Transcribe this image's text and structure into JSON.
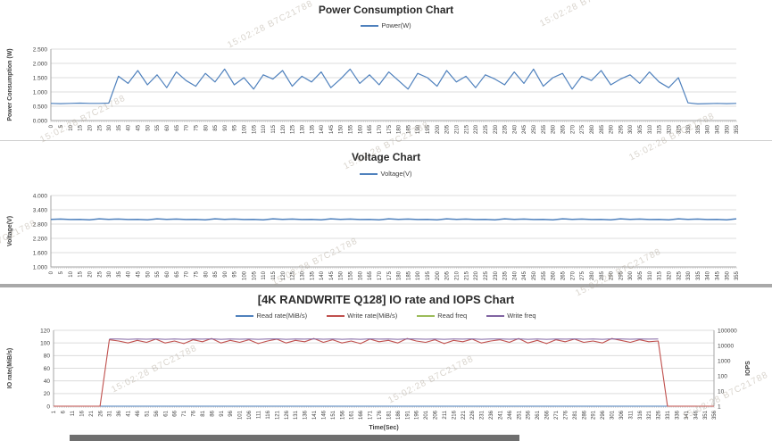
{
  "watermark": {
    "text": "15:02:28   B7C21788"
  },
  "chart_data": [
    {
      "id": "power",
      "type": "line",
      "title": "Power Consumption Chart",
      "legend": [
        {
          "label": "Power(W)",
          "color": "#4F81BD"
        }
      ],
      "y_axis": {
        "label": "Power Consumption (W)",
        "min": 0,
        "max": 2.5,
        "step": 0.5,
        "decimals": 3
      },
      "x_axis": {
        "min": 0,
        "max": 355,
        "step": 5
      },
      "series": [
        {
          "name": "Power(W)",
          "color": "#4F81BD",
          "axis": "left",
          "width": 1.2,
          "values": [
            0.6,
            0.59,
            0.6,
            0.61,
            0.6,
            0.6,
            0.61,
            1.55,
            1.3,
            1.75,
            1.25,
            1.6,
            1.15,
            1.7,
            1.4,
            1.2,
            1.65,
            1.35,
            1.8,
            1.25,
            1.5,
            1.1,
            1.6,
            1.45,
            1.75,
            1.2,
            1.55,
            1.35,
            1.7,
            1.15,
            1.45,
            1.8,
            1.3,
            1.6,
            1.25,
            1.7,
            1.4,
            1.1,
            1.65,
            1.5,
            1.2,
            1.75,
            1.35,
            1.55,
            1.15,
            1.6,
            1.45,
            1.25,
            1.7,
            1.3,
            1.8,
            1.2,
            1.5,
            1.65,
            1.1,
            1.55,
            1.4,
            1.75,
            1.25,
            1.45,
            1.6,
            1.3,
            1.7,
            1.35,
            1.15,
            1.5,
            0.62,
            0.58,
            0.59,
            0.6,
            0.59,
            0.6
          ]
        }
      ]
    },
    {
      "id": "voltage",
      "type": "line",
      "title": "Voltage Chart",
      "legend": [
        {
          "label": "Voltage(V)",
          "color": "#4F81BD"
        }
      ],
      "y_axis": {
        "label": "Voltage(V)",
        "min": 1.0,
        "max": 4.0,
        "step": 0.6,
        "decimals": 3
      },
      "x_axis": {
        "min": 0,
        "max": 355,
        "step": 5
      },
      "series": [
        {
          "name": "Voltage(V)",
          "color": "#4F81BD",
          "axis": "left",
          "width": 1.5,
          "values": [
            3.0,
            3.01,
            2.99,
            3.0,
            2.98,
            3.02,
            3.0,
            3.01,
            2.99,
            3.0,
            2.98,
            3.02,
            3.0,
            3.01,
            2.99,
            3.0,
            2.98,
            3.02,
            3.0,
            3.01,
            2.99,
            3.0,
            2.98,
            3.02,
            3.0,
            3.01,
            2.99,
            3.0,
            2.98,
            3.02,
            3.0,
            3.01,
            2.99,
            3.0,
            2.98,
            3.02,
            3.0,
            3.01,
            2.99,
            3.0,
            2.98,
            3.02,
            3.0,
            3.01,
            2.99,
            3.0,
            2.98,
            3.02,
            3.0,
            3.01,
            2.99,
            3.0,
            2.98,
            3.02,
            3.0,
            3.01,
            2.99,
            3.0,
            2.98,
            3.02,
            3.0,
            3.01,
            2.99,
            3.0,
            2.98,
            3.02,
            3.0,
            3.01,
            2.99,
            3.0,
            2.98,
            3.02
          ]
        }
      ]
    },
    {
      "id": "io",
      "type": "line",
      "title": "[4K RANDWRITE Q128] IO rate and IOPS Chart",
      "legend": [
        {
          "label": "Read rate(MiB/s)",
          "color": "#4F81BD"
        },
        {
          "label": "Write rate(MiB/s)",
          "color": "#C0504D"
        },
        {
          "label": "Read freq",
          "color": "#9BBB59"
        },
        {
          "label": "Write freq",
          "color": "#8064A2"
        }
      ],
      "y_axis": {
        "label": "IO rate(MiB/s)",
        "min": 0,
        "max": 120,
        "step": 20,
        "decimals": 0
      },
      "y2_axis": {
        "label": "IOPS",
        "min": 1,
        "max": 100000,
        "scale": "log"
      },
      "x_axis": {
        "min": 1,
        "max": 356,
        "step": 5,
        "label": "Time(Sec)"
      },
      "series": [
        {
          "name": "Read rate(MiB/s)",
          "color": "#4F81BD",
          "axis": "left",
          "width": 1.1,
          "values": [
            0,
            0,
            0,
            0,
            0,
            0,
            0,
            0,
            0,
            0,
            0,
            0,
            0,
            0,
            0,
            0,
            0,
            0,
            0,
            0,
            0,
            0,
            0,
            0,
            0,
            0,
            0,
            0,
            0,
            0,
            0,
            0,
            0,
            0,
            0,
            0,
            0,
            0,
            0,
            0,
            0,
            0,
            0,
            0,
            0,
            0,
            0,
            0,
            0,
            0,
            0,
            0,
            0,
            0,
            0,
            0,
            0,
            0,
            0,
            0,
            0,
            0,
            0,
            0,
            0,
            0,
            0,
            0,
            0,
            0,
            0,
            0
          ]
        },
        {
          "name": "Write rate(MiB/s)",
          "color": "#C0504D",
          "axis": "left",
          "width": 1.1,
          "values": [
            0,
            0,
            0,
            0,
            0,
            0,
            105,
            103,
            100,
            104,
            101,
            106,
            100,
            103,
            99,
            105,
            102,
            107,
            100,
            104,
            101,
            105,
            99,
            103,
            106,
            100,
            104,
            102,
            107,
            101,
            105,
            100,
            103,
            99,
            106,
            102,
            104,
            100,
            107,
            103,
            101,
            105,
            99,
            104,
            102,
            106,
            100,
            103,
            105,
            101,
            107,
            100,
            104,
            99,
            105,
            102,
            106,
            101,
            103,
            100,
            107,
            104,
            101,
            105,
            102,
            103,
            0,
            0,
            0,
            0,
            0,
            0
          ]
        },
        {
          "name": "Read freq",
          "color": "#9BBB59",
          "axis": "right",
          "width": 1.0,
          "values": [
            null,
            null,
            null,
            null,
            null,
            null,
            null,
            null,
            null,
            null,
            null,
            null,
            null,
            null,
            null,
            null,
            null,
            null,
            null,
            null,
            null,
            null,
            null,
            null,
            null,
            null,
            null,
            null,
            null,
            null,
            null,
            null,
            null,
            null,
            null,
            null,
            null,
            null,
            null,
            null,
            null,
            null,
            null,
            null,
            null,
            null,
            null,
            null,
            null,
            null,
            null,
            null,
            null,
            null,
            null,
            null,
            null,
            null,
            null,
            null,
            null,
            null,
            null,
            null,
            null,
            null,
            null,
            null,
            null,
            null,
            null,
            null
          ]
        },
        {
          "name": "Write freq",
          "color": "#8064A2",
          "axis": "right",
          "width": 1.0,
          "values": [
            null,
            null,
            null,
            null,
            null,
            null,
            26880,
            26368,
            25600,
            26624,
            25856,
            27136,
            25600,
            26368,
            25344,
            26880,
            26112,
            27392,
            25600,
            26624,
            25856,
            26880,
            25344,
            26368,
            27136,
            25600,
            26624,
            26112,
            27392,
            25856,
            26880,
            25600,
            26368,
            25344,
            27136,
            26112,
            26624,
            25600,
            27392,
            26368,
            25856,
            26880,
            25344,
            26624,
            26112,
            27136,
            25600,
            26368,
            26880,
            25856,
            27392,
            25600,
            26624,
            25344,
            26880,
            26112,
            27136,
            25856,
            26368,
            25600,
            27392,
            26624,
            25856,
            26880,
            26112,
            26368,
            null,
            null,
            null,
            null,
            null,
            null
          ]
        }
      ]
    }
  ]
}
